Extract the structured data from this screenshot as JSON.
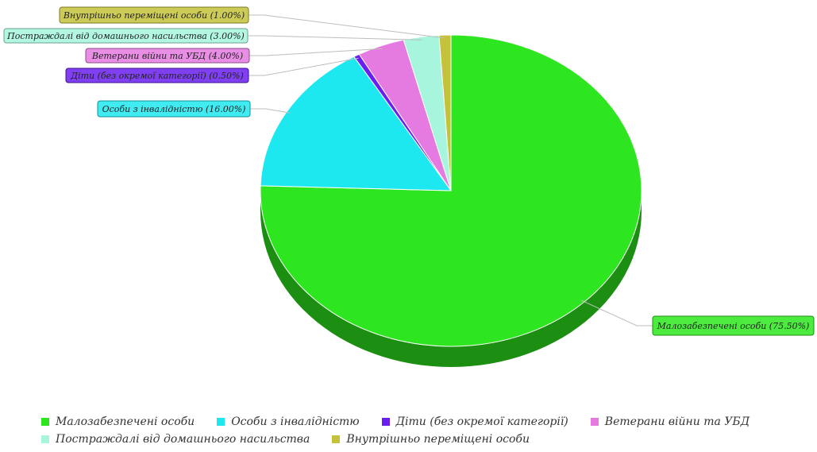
{
  "chart_data": {
    "type": "pie",
    "title": "",
    "slices": [
      {
        "label": "Малозабезпечені особи",
        "callout": "Малозабезпечені особи (75.50%)",
        "value": 75.5,
        "color": "#2ee61f",
        "side": "#1c8f12"
      },
      {
        "label": "Особи з інвалідністю",
        "callout": "Особи з інвалідністю (16.00%)",
        "value": 16.0,
        "color": "#1ee8ef",
        "side": "#119196"
      },
      {
        "label": "Діти (без окремої категорії)",
        "callout": "Діти (без окремої категорії) (0.50%)",
        "value": 0.5,
        "color": "#6a1ef0",
        "side": "#3d1190"
      },
      {
        "label": "Ветерани війни та УБД",
        "callout": "Ветерани війни та УБД (4.00%)",
        "value": 4.0,
        "color": "#e57ae0",
        "side": "#8f4b8b"
      },
      {
        "label": "Постраждалі від домашнього насильства",
        "callout": "Постраждалі від домашнього насильства (3.00%)",
        "value": 3.0,
        "color": "#a6f5dc",
        "side": "#69a392"
      },
      {
        "label": "Внутрішньо переміщені особи",
        "callout": "Внутрішньо переміщені особи (1.00%)",
        "value": 1.0,
        "color": "#c4c23a",
        "side": "#7c7a22"
      }
    ],
    "legend_position": "bottom",
    "legend_rows": [
      [
        0,
        1,
        2,
        3
      ],
      [
        4,
        5
      ]
    ]
  }
}
